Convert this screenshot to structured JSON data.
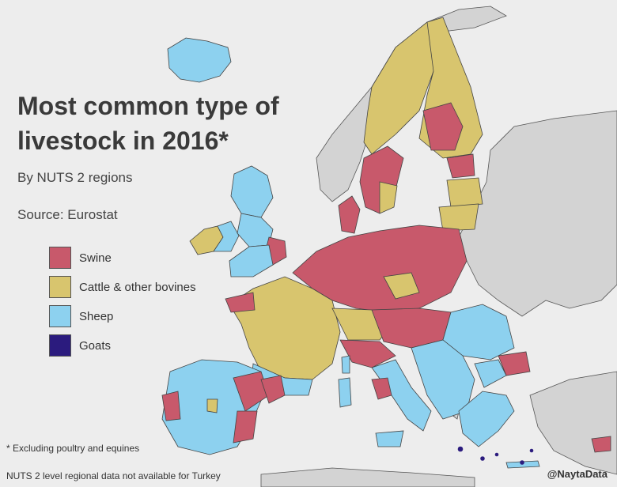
{
  "title": "Most common type of livestock in 2016*",
  "subtitle": "By NUTS 2 regions",
  "source": "Source: Eurostat",
  "legend": [
    {
      "label": "Swine",
      "color": "#c8596b"
    },
    {
      "label": "Cattle & other bovines",
      "color": "#d8c56e"
    },
    {
      "label": "Sheep",
      "color": "#8dd1ef"
    },
    {
      "label": "Goats",
      "color": "#2b1b7e"
    }
  ],
  "colors": {
    "no_data": "#d3d3d3",
    "sea": "#ededed",
    "border": "#444444"
  },
  "footnote": "* Excluding poultry and equines",
  "note": "NUTS 2 level regional data not available for Turkey",
  "credit": "@NaytaData"
}
